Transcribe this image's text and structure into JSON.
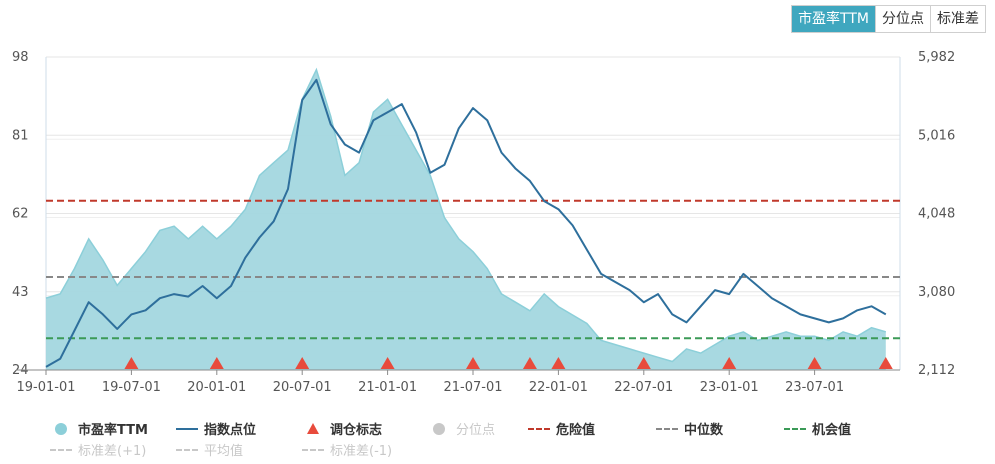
{
  "tabs": [
    {
      "label": "市盈率TTM",
      "active": true
    },
    {
      "label": "分位点",
      "active": false
    },
    {
      "label": "标准差",
      "active": false
    }
  ],
  "chart_data": {
    "type": "area",
    "left_axis": {
      "ticks": [
        "98",
        "81",
        "62",
        "43",
        "24"
      ],
      "min": 24,
      "max": 98
    },
    "right_axis": {
      "ticks": [
        "5,982",
        "5,016",
        "4,048",
        "3,080",
        "2,112"
      ],
      "min": 2112,
      "max": 5982
    },
    "x_ticks": [
      "19-01-01",
      "19-07-01",
      "20-01-01",
      "20-07-01",
      "21-01-01",
      "21-07-01",
      "22-01-01",
      "22-07-01",
      "23-01-01",
      "23-07-01"
    ],
    "pe_series": {
      "name": "市盈率TTM",
      "x": [
        "2019-01",
        "2019-02",
        "2019-03",
        "2019-04",
        "2019-05",
        "2019-06",
        "2019-07",
        "2019-08",
        "2019-09",
        "2019-10",
        "2019-11",
        "2019-12",
        "2020-01",
        "2020-02",
        "2020-03",
        "2020-04",
        "2020-05",
        "2020-06",
        "2020-07",
        "2020-08",
        "2020-09",
        "2020-10",
        "2020-11",
        "2020-12",
        "2021-01",
        "2021-02",
        "2021-03",
        "2021-04",
        "2021-05",
        "2021-06",
        "2021-07",
        "2021-08",
        "2021-09",
        "2021-10",
        "2021-11",
        "2021-12",
        "2022-01",
        "2022-02",
        "2022-03",
        "2022-04",
        "2022-05",
        "2022-06",
        "2022-07",
        "2022-08",
        "2022-09",
        "2022-10",
        "2022-11",
        "2022-12",
        "2023-01",
        "2023-02",
        "2023-03",
        "2023-04",
        "2023-05",
        "2023-06",
        "2023-07",
        "2023-08",
        "2023-09",
        "2023-10",
        "2023-11",
        "2023-12"
      ],
      "values": [
        41,
        42,
        48,
        55,
        50,
        44,
        48,
        52,
        57,
        58,
        55,
        58,
        55,
        58,
        62,
        70,
        73,
        76,
        88,
        95,
        84,
        70,
        73,
        85,
        88,
        82,
        76,
        70,
        60,
        55,
        52,
        48,
        42,
        40,
        38,
        42,
        39,
        37,
        35,
        31,
        30,
        29,
        28,
        27,
        26,
        29,
        28,
        30,
        32,
        33,
        31,
        32,
        33,
        32,
        32,
        31,
        33,
        32,
        34,
        33
      ]
    },
    "index_series": {
      "name": "指数点位",
      "x": [
        "2019-01",
        "2019-02",
        "2019-03",
        "2019-04",
        "2019-05",
        "2019-06",
        "2019-07",
        "2019-08",
        "2019-09",
        "2019-10",
        "2019-11",
        "2019-12",
        "2020-01",
        "2020-02",
        "2020-03",
        "2020-04",
        "2020-05",
        "2020-06",
        "2020-07",
        "2020-08",
        "2020-09",
        "2020-10",
        "2020-11",
        "2020-12",
        "2021-01",
        "2021-02",
        "2021-03",
        "2021-04",
        "2021-05",
        "2021-06",
        "2021-07",
        "2021-08",
        "2021-09",
        "2021-10",
        "2021-11",
        "2021-12",
        "2022-01",
        "2022-02",
        "2022-03",
        "2022-04",
        "2022-05",
        "2022-06",
        "2022-07",
        "2022-08",
        "2022-09",
        "2022-10",
        "2022-11",
        "2022-12",
        "2023-01",
        "2023-02",
        "2023-03",
        "2023-04",
        "2023-05",
        "2023-06",
        "2023-07",
        "2023-08",
        "2023-09",
        "2023-10",
        "2023-11",
        "2023-12"
      ],
      "values": [
        2150,
        2250,
        2600,
        2950,
        2800,
        2620,
        2800,
        2850,
        3000,
        3050,
        3020,
        3150,
        3000,
        3150,
        3500,
        3750,
        3950,
        4350,
        5450,
        5700,
        5150,
        4900,
        4800,
        5200,
        5300,
        5400,
        5050,
        4550,
        4650,
        5100,
        5350,
        5200,
        4800,
        4600,
        4450,
        4200,
        4100,
        3900,
        3600,
        3300,
        3200,
        3100,
        2950,
        3050,
        2800,
        2700,
        2900,
        3100,
        3050,
        3300,
        3150,
        3000,
        2900,
        2800,
        2750,
        2700,
        2750,
        2850,
        2900,
        2800
      ]
    },
    "adjust_markers": {
      "name": "调仓标志",
      "x": [
        "2019-07",
        "2020-01",
        "2020-07",
        "2021-01",
        "2021-07",
        "2021-11",
        "2022-01",
        "2022-07",
        "2023-01",
        "2023-07",
        "2023-12"
      ]
    },
    "danger_value": 64,
    "median_value": 46,
    "opportunity_value": 31.5,
    "colors": {
      "pe_fill": "#a3d7df",
      "pe_line": "#8ccfd9",
      "index_line": "#2e6f9c",
      "danger": "#c0392b",
      "median": "#888888",
      "opportunity": "#3b9a57",
      "marker": "#e84b3c",
      "disabled": "#c8c8c8"
    }
  },
  "legend": {
    "row1": [
      {
        "label": "市盈率TTM",
        "icon": "circle-icon",
        "color": "#8ccfd9",
        "enabled": true
      },
      {
        "label": "指数点位",
        "icon": "line-icon",
        "color": "#2e6f9c",
        "enabled": true
      },
      {
        "label": "调仓标志",
        "icon": "triangle-icon",
        "color": "#e84b3c",
        "enabled": true
      },
      {
        "label": "分位点",
        "icon": "circle-icon",
        "color": "#c8c8c8",
        "enabled": false
      },
      {
        "label": "危险值",
        "icon": "dash-line-icon",
        "color": "#c0392b",
        "enabled": true
      },
      {
        "label": "中位数",
        "icon": "dash-line-icon",
        "color": "#888888",
        "enabled": true
      },
      {
        "label": "机会值",
        "icon": "dash-line-icon",
        "color": "#3b9a57",
        "enabled": true
      }
    ],
    "row2": [
      {
        "label": "标准差(+1)",
        "icon": "dash-line-icon",
        "color": "#c8c8c8",
        "enabled": false
      },
      {
        "label": "平均值",
        "icon": "dash-line-icon",
        "color": "#c8c8c8",
        "enabled": false
      },
      {
        "label": "标准差(-1)",
        "icon": "dash-line-icon",
        "color": "#c8c8c8",
        "enabled": false
      }
    ]
  }
}
